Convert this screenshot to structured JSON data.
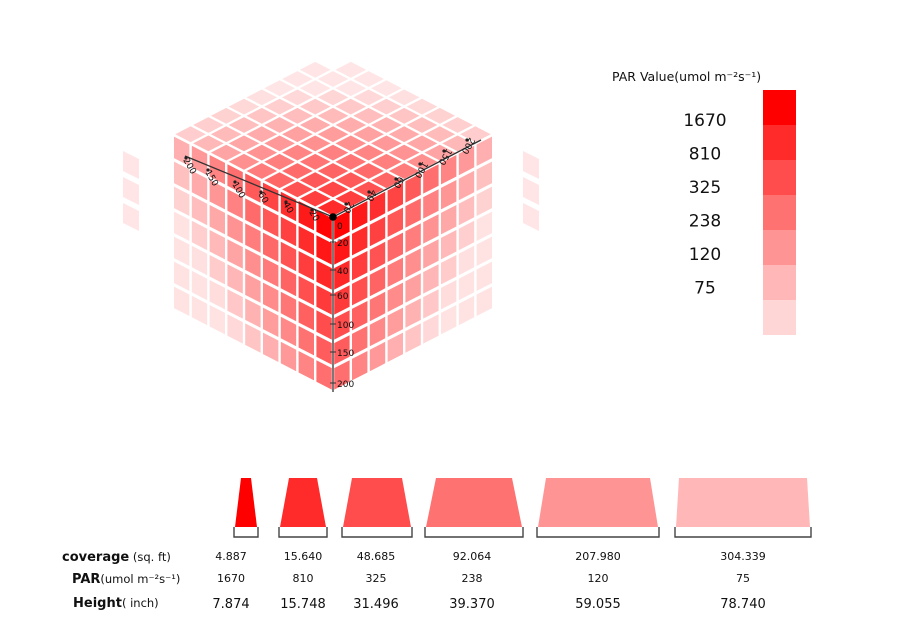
{
  "legend": {
    "title": "PAR Value(umol m⁻²s⁻¹)",
    "levels": [
      {
        "label": "1670",
        "color": "#ff0000"
      },
      {
        "label": "810",
        "color": "#ff2a2a"
      },
      {
        "label": "325",
        "color": "#ff4d4d"
      },
      {
        "label": "238",
        "color": "#ff7272"
      },
      {
        "label": "120",
        "color": "#ff9494"
      },
      {
        "label": "75",
        "color": "#ffb7b7"
      },
      {
        "label": "",
        "color": "#ffd6d6"
      }
    ]
  },
  "cube": {
    "left_axis_ticks": [
      "200",
      "150",
      "100",
      "60",
      "40",
      "20"
    ],
    "right_axis_ticks": [
      "20",
      "40",
      "60",
      "100",
      "150",
      "200"
    ],
    "vertical_axis_ticks": [
      "0",
      "20",
      "40",
      "60",
      "100",
      "150",
      "200"
    ]
  },
  "table": {
    "rows": [
      {
        "label": "coverage",
        "unit": " (sq. ft)",
        "values": [
          "4.887",
          "15.640",
          "48.685",
          "92.064",
          "207.980",
          "304.339"
        ]
      },
      {
        "label": "PAR",
        "unit": "(umol m⁻²s⁻¹)",
        "values": [
          "1670",
          "810",
          "325",
          "238",
          "120",
          "75"
        ]
      },
      {
        "label": "Height",
        "unit": "( inch)",
        "values": [
          "7.874",
          "15.748",
          "31.496",
          "39.370",
          "59.055",
          "78.740"
        ]
      }
    ],
    "shape_colors": [
      "#ff0000",
      "#ff2a2a",
      "#ff4d4d",
      "#ff7272",
      "#ff9494",
      "#ffb7b7"
    ]
  }
}
